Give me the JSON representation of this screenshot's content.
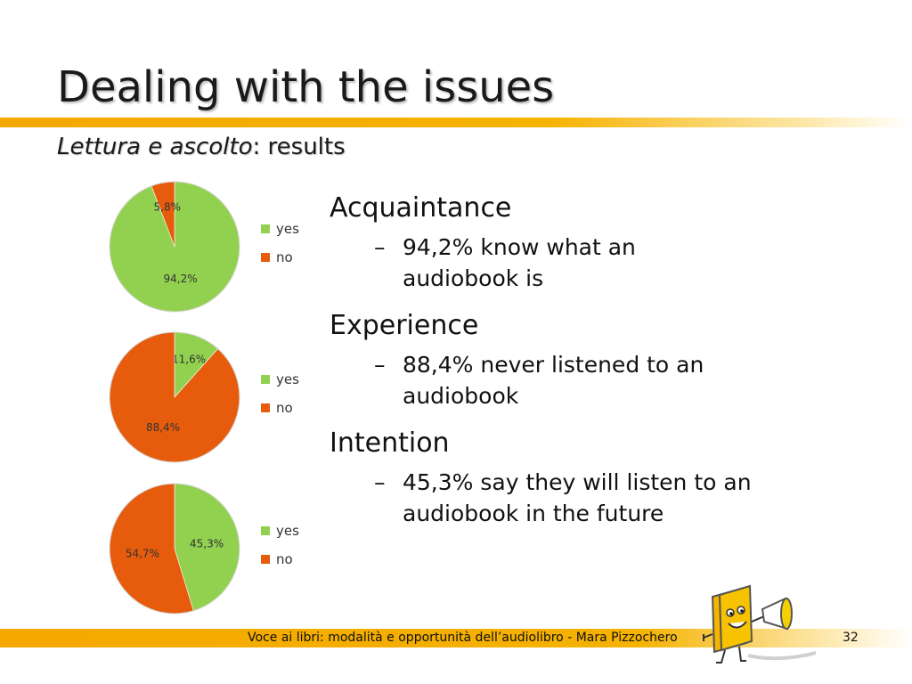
{
  "slide": {
    "title": "Dealing with the issues",
    "subtitle_italic": "Lettura e ascolto",
    "subtitle_rest": ": results",
    "footer_text": "Voce ai libri: modalità e opportunità dell’audiolibro - Mara Pizzochero",
    "page_number": "32"
  },
  "colors": {
    "yes": "#92d050",
    "no": "#e65c0c",
    "accent": "#f5b000"
  },
  "bullets": [
    {
      "heading": "Acquaintance",
      "sub_line1": "94,2% know what an",
      "sub_line2": "audiobook is"
    },
    {
      "heading": "Experience",
      "sub_line1": "88,4% never listened to an",
      "sub_line2": "audiobook"
    },
    {
      "heading": "Intention",
      "sub_line1": "45,3% say they will listen to an",
      "sub_line2": "audiobook in the future"
    }
  ],
  "chart_data": [
    {
      "type": "pie",
      "categories": [
        "yes",
        "no"
      ],
      "values": [
        94.2,
        5.8
      ],
      "data_labels": [
        "94,2%",
        "5,8%"
      ],
      "legend": "right"
    },
    {
      "type": "pie",
      "categories": [
        "yes",
        "no"
      ],
      "values": [
        11.6,
        88.4
      ],
      "data_labels": [
        "11,6%",
        "88,4%"
      ],
      "legend": "right"
    },
    {
      "type": "pie",
      "categories": [
        "yes",
        "no"
      ],
      "values": [
        45.3,
        54.7
      ],
      "data_labels": [
        "45,3%",
        "54,7%"
      ],
      "legend": "right"
    }
  ]
}
